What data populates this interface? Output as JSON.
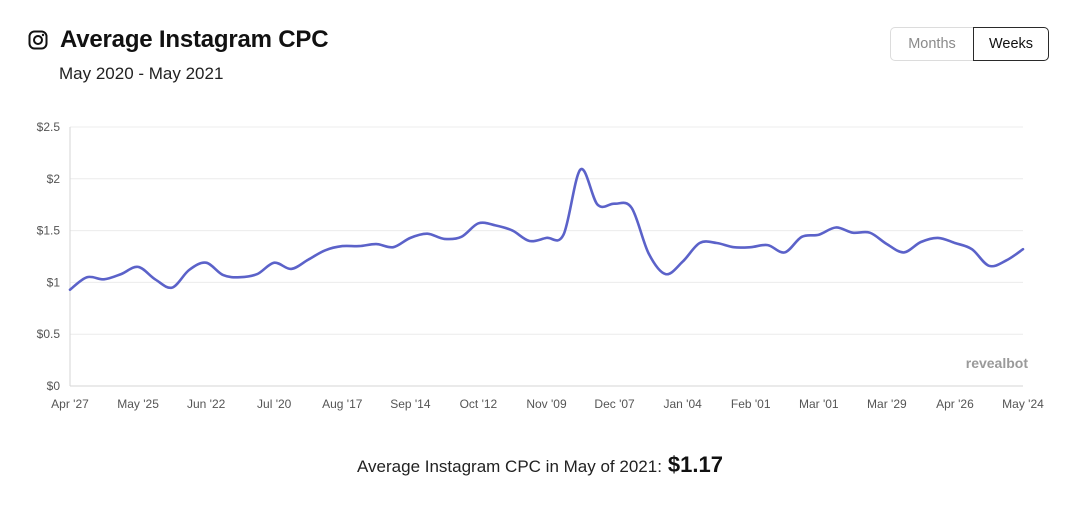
{
  "header": {
    "title": "Average Instagram CPC",
    "subtitle": "May 2020 - May 2021"
  },
  "toggle": {
    "months_label": "Months",
    "weeks_label": "Weeks",
    "selected": "Weeks"
  },
  "watermark": "revealbot",
  "summary": {
    "label": "Average Instagram CPC in May of 2021:",
    "value": "$1.17"
  },
  "colors": {
    "line": "#5b62c9",
    "grid": "#ececec",
    "active_border": "#2a2a2a"
  },
  "chart_data": {
    "type": "line",
    "title": "",
    "xlabel": "",
    "ylabel": "",
    "ylim": [
      0,
      2.5
    ],
    "y_ticks": [
      0,
      0.5,
      1,
      1.5,
      2,
      2.5
    ],
    "y_tick_labels": [
      "$0",
      "$0.5",
      "$1",
      "$1.5",
      "$2",
      "$2.5"
    ],
    "x_tick_labels": [
      "Apr '27",
      "May '25",
      "Jun '22",
      "Jul '20",
      "Aug '17",
      "Sep '14",
      "Oct '12",
      "Nov '09",
      "Dec '07",
      "Jan '04",
      "Feb '01",
      "Mar '01",
      "Mar '29",
      "Apr '26",
      "May '24"
    ],
    "grid": true,
    "series": [
      {
        "values": [
          0.93,
          1.05,
          1.03,
          1.08,
          1.15,
          1.03,
          0.95,
          1.12,
          1.19,
          1.07,
          1.05,
          1.08,
          1.19,
          1.13,
          1.22,
          1.31,
          1.35,
          1.35,
          1.37,
          1.34,
          1.43,
          1.47,
          1.42,
          1.44,
          1.57,
          1.55,
          1.5,
          1.4,
          1.43,
          1.46,
          2.09,
          1.75,
          1.76,
          1.72,
          1.28,
          1.08,
          1.2,
          1.38,
          1.38,
          1.34,
          1.34,
          1.36,
          1.29,
          1.44,
          1.46,
          1.53,
          1.48,
          1.48,
          1.37,
          1.29,
          1.39,
          1.43,
          1.38,
          1.32,
          1.16,
          1.21,
          1.32
        ]
      }
    ]
  }
}
